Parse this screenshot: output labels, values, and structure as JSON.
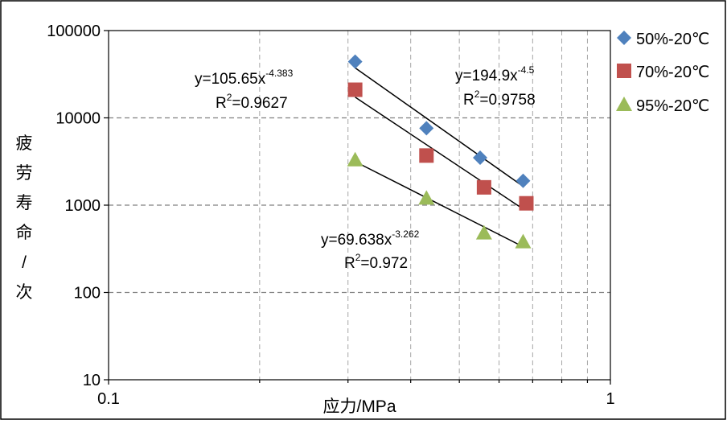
{
  "chart_data": {
    "type": "scatter",
    "x_scale": "log",
    "y_scale": "log",
    "xlim": [
      0.1,
      1
    ],
    "ylim": [
      10,
      100000
    ],
    "xlabel": "应力/MPa",
    "ylabel": "疲劳寿命/次",
    "x_ticks": [
      "0.1",
      "1"
    ],
    "y_ticks": [
      "10",
      "100",
      "1000",
      "10000",
      "100000"
    ],
    "grid": true,
    "legend_position": "right",
    "series": [
      {
        "name": "50%-20℃",
        "marker": "diamond",
        "color": "#4F81BD",
        "x": [
          0.31,
          0.43,
          0.55,
          0.67
        ],
        "y": [
          44000,
          7600,
          3500,
          1900
        ],
        "trendline": {
          "coef": 105.65,
          "exp": -4.383,
          "x_range": [
            0.31,
            0.67
          ]
        }
      },
      {
        "name": "70%-20℃",
        "marker": "square",
        "color": "#C0504D",
        "x": [
          0.31,
          0.43,
          0.56,
          0.68
        ],
        "y": [
          21000,
          3700,
          1600,
          1050
        ],
        "trendline": {
          "coef": 194.9,
          "exp": -4.5,
          "x_range": [
            0.31,
            0.67
          ]
        }
      },
      {
        "name": "95%-20℃",
        "marker": "triangle",
        "color": "#9BBB59",
        "x": [
          0.31,
          0.43,
          0.56,
          0.67
        ],
        "y": [
          3300,
          1200,
          480,
          380
        ],
        "trendline": {
          "coef": 69.638,
          "exp": -3.262,
          "x_range": [
            0.31,
            0.67
          ]
        }
      }
    ],
    "annotations": [
      {
        "id": "eq1",
        "base": "y=105.65x",
        "sup": "-4.383"
      },
      {
        "id": "r1",
        "base": "R",
        "sup": "2",
        "tail": "=0.9627"
      },
      {
        "id": "eq2",
        "base": "y=194.9x",
        "sup": "-4.5"
      },
      {
        "id": "r2",
        "base": "R",
        "sup": "2",
        "tail": "=0.9758"
      },
      {
        "id": "eq3",
        "base": "y=69.638x",
        "sup": "-3.262"
      },
      {
        "id": "r3",
        "base": "R",
        "sup": "2",
        "tail": "=0.972"
      }
    ]
  }
}
